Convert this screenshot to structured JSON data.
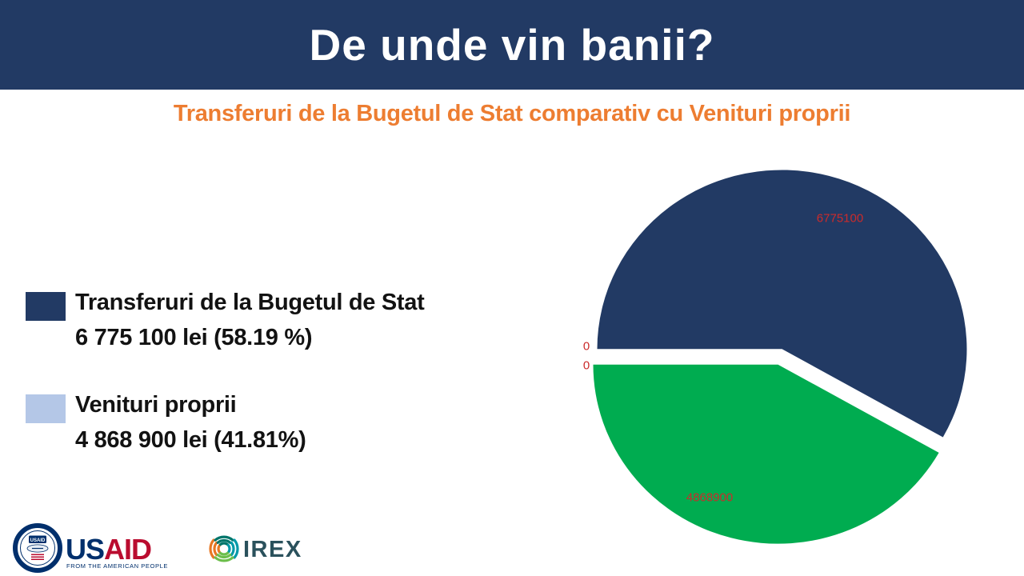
{
  "header": {
    "title": "De unde vin banii?"
  },
  "subtitle": "Transferuri de la Bugetul de Stat comparativ cu Venituri proprii",
  "legend": {
    "items": [
      {
        "label": "Transferuri de la Bugetul de Stat",
        "value_text": "6 775 100 lei (58.19 %)",
        "swatch_color": "#223A64"
      },
      {
        "label": "Venituri proprii",
        "value_text": "4 868 900 lei (41.81%)",
        "swatch_color": "#B4C7E7"
      }
    ]
  },
  "chart_data": {
    "type": "pie",
    "title": "Transferuri de la Bugetul de Stat comparativ cu Venituri proprii",
    "categories": [
      "Transferuri de la Bugetul de Stat",
      "Venituri proprii"
    ],
    "values": [
      6775100,
      4868900
    ],
    "percentages": [
      58.19,
      41.81
    ],
    "data_labels": [
      "6775100",
      "4868900"
    ],
    "zero_labels": [
      "0",
      "0"
    ],
    "slice_colors": [
      "#223A64",
      "#00AC50"
    ],
    "data_label_color": "#CB2B2B",
    "start_angle_deg": 270,
    "clockwise": true,
    "exploded": true,
    "legend_position": "left"
  },
  "footer": {
    "usaid_logo": {
      "seal_label": "USAID",
      "wordmark_us": "US",
      "wordmark_aid": "AID",
      "tagline": "FROM THE AMERICAN PEOPLE",
      "navy": "#002F6C",
      "red": "#BA0C2F"
    },
    "irex_logo": {
      "wordmark": "IREX",
      "text_color": "#2A515C"
    }
  },
  "colors": {
    "header_bg": "#223A64",
    "title_text": "#FFFFFF",
    "subtitle_text": "#ED7D31",
    "pie_navy": "#223A64",
    "pie_green": "#00AC50",
    "legend_light_blue": "#B4C7E7",
    "label_red": "#CB2B2B"
  }
}
